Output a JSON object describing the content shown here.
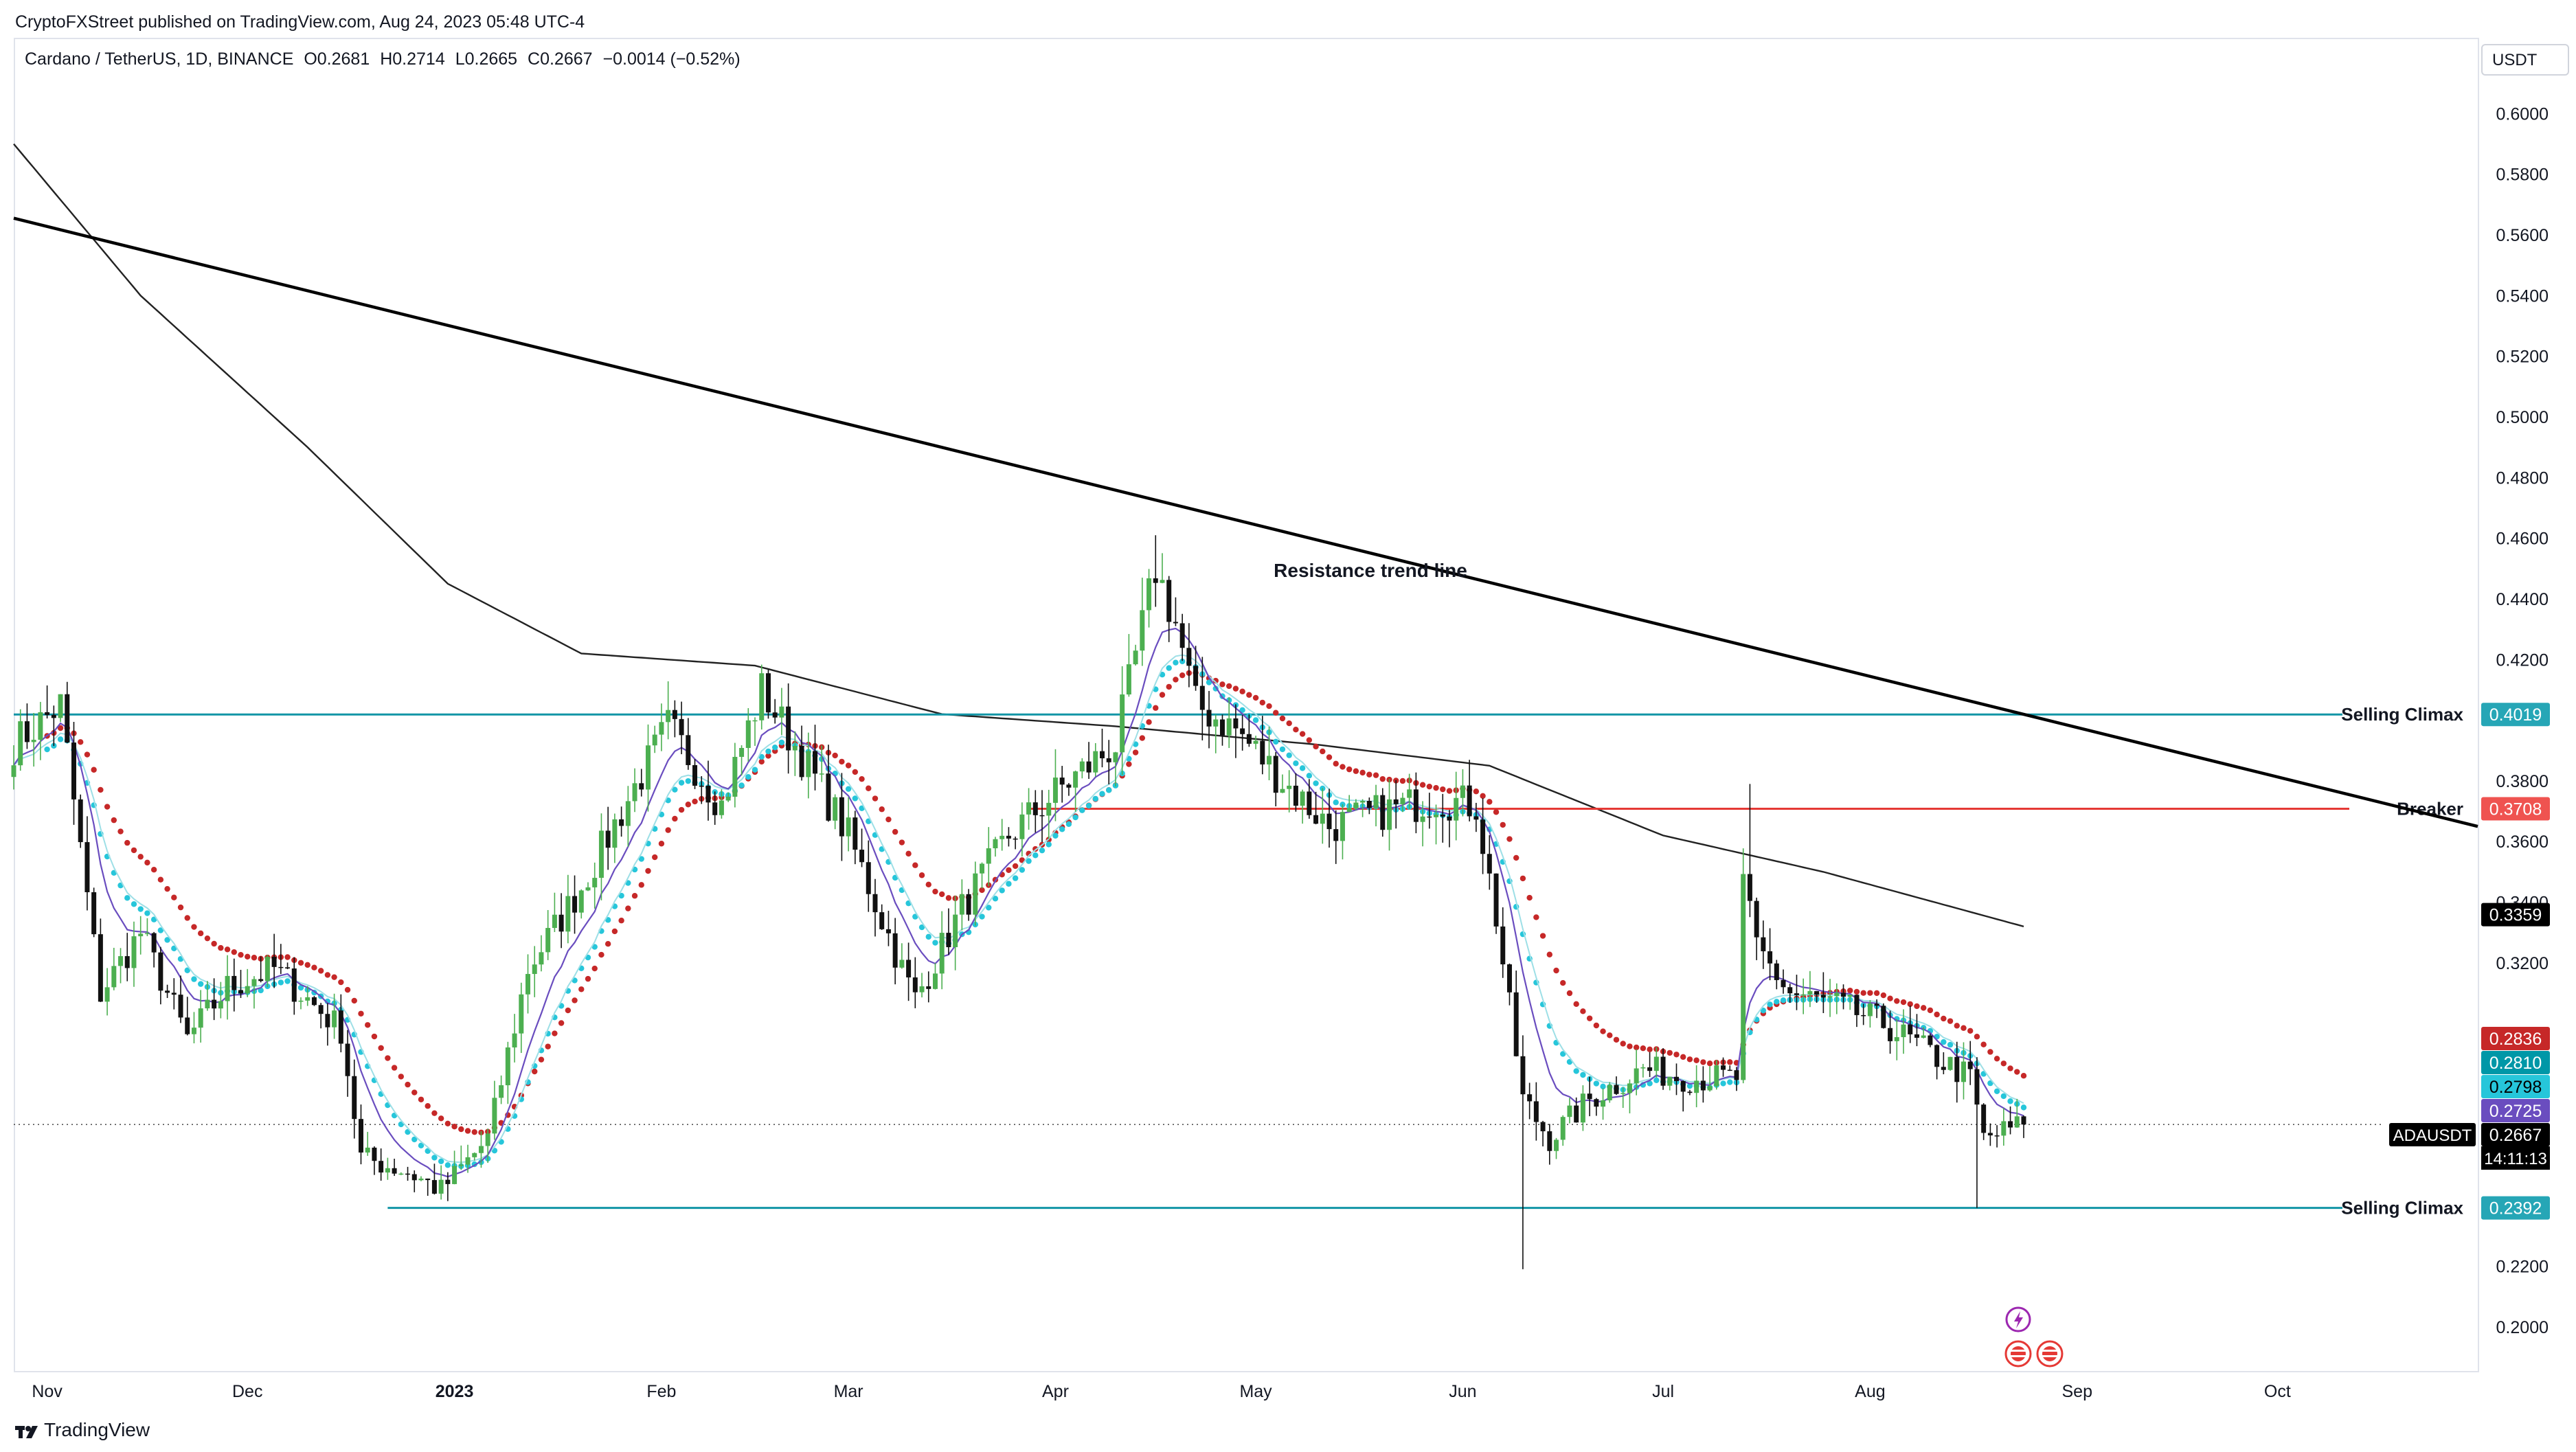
{
  "header": {
    "publisher_line": "CryptoFXStreet published on TradingView.com, Aug 24, 2023 05:48 UTC-4"
  },
  "symbol": {
    "name": "Cardano / TetherUS, 1D, BINANCE",
    "open": "O0.2681",
    "high": "H0.2714",
    "low": "L0.2665",
    "close": "C0.2667",
    "change": "−0.0014 (−0.52%)"
  },
  "axis": {
    "currency": "USDT",
    "ticks": [
      "0.6000",
      "0.5800",
      "0.5600",
      "0.5400",
      "0.5200",
      "0.5000",
      "0.4800",
      "0.4600",
      "0.4400",
      "0.4200",
      "0.3800",
      "0.3600",
      "0.3400",
      "0.3200",
      "0.2200",
      "0.2000"
    ],
    "time_labels": [
      "Nov",
      "Dec",
      "2023",
      "Feb",
      "Mar",
      "Apr",
      "May",
      "Jun",
      "Jul",
      "Aug",
      "Sep",
      "Oct"
    ]
  },
  "footer": {
    "brand": "TradingView"
  },
  "colors": {
    "bull": "#4caf50",
    "bear": "#111111",
    "teal_line": "#1295a6",
    "red_line": "#e53935",
    "dots_red": "#c62828",
    "dots_cyan": "#26c6da",
    "ma_purple": "#6a4dbf"
  },
  "chart_data": {
    "type": "candlestick",
    "instrument": "ADAUSDT",
    "timeframe": "1D",
    "y_range": [
      0.185,
      0.625
    ],
    "x_range_dates": [
      "2022-10-27",
      "2023-10-31"
    ],
    "levels": [
      {
        "label": "Selling Climax",
        "value": 0.4019,
        "color": "#1295a6",
        "from": "2022-10-27"
      },
      {
        "label": "Breaker",
        "value": 0.3708,
        "color": "#e53935",
        "from": "2023-03-28"
      },
      {
        "label": "Selling Climax",
        "value": 0.2392,
        "color": "#1295a6",
        "from": "2022-12-22"
      }
    ],
    "trendline": {
      "label": "Resistance trend line",
      "from": [
        "2022-10-27",
        0.5655
      ],
      "to": [
        "2023-10-31",
        0.365
      ]
    },
    "price_tags": [
      {
        "value": "0.3359",
        "bg": "#000000",
        "fg": "#ffffff"
      },
      {
        "value": "0.2836",
        "bg": "#c62828",
        "fg": "#ffffff"
      },
      {
        "value": "0.2810",
        "bg": "#0097a7",
        "fg": "#ffffff"
      },
      {
        "value": "0.2798",
        "bg": "#26c6da",
        "fg": "#000000"
      },
      {
        "value": "0.2725",
        "bg": "#6a4dbf",
        "fg": "#ffffff"
      },
      {
        "value": "0.2667",
        "bg": "#000000",
        "fg": "#ffffff",
        "symbol_label": "ADAUSDT",
        "countdown": "14:11:13"
      }
    ],
    "anchors": [
      [
        "2022-10-27",
        0.392
      ],
      [
        "2022-11-03",
        0.405
      ],
      [
        "2022-11-09",
        0.31
      ],
      [
        "2022-11-15",
        0.33
      ],
      [
        "2022-11-22",
        0.295
      ],
      [
        "2022-11-28",
        0.312
      ],
      [
        "2022-12-05",
        0.318
      ],
      [
        "2022-12-15",
        0.298
      ],
      [
        "2022-12-18",
        0.256
      ],
      [
        "2022-12-25",
        0.251
      ],
      [
        "2022-12-30",
        0.245
      ],
      [
        "2023-01-06",
        0.262
      ],
      [
        "2023-01-12",
        0.318
      ],
      [
        "2023-01-20",
        0.345
      ],
      [
        "2023-01-28",
        0.378
      ],
      [
        "2023-02-02",
        0.398
      ],
      [
        "2023-02-10",
        0.372
      ],
      [
        "2023-02-16",
        0.41
      ],
      [
        "2023-02-22",
        0.388
      ],
      [
        "2023-03-01",
        0.362
      ],
      [
        "2023-03-09",
        0.318
      ],
      [
        "2023-03-11",
        0.308
      ],
      [
        "2023-03-18",
        0.338
      ],
      [
        "2023-03-25",
        0.362
      ],
      [
        "2023-04-02",
        0.378
      ],
      [
        "2023-04-10",
        0.392
      ],
      [
        "2023-04-16",
        0.45
      ],
      [
        "2023-04-19",
        0.432
      ],
      [
        "2023-04-22",
        0.405
      ],
      [
        "2023-04-28",
        0.397
      ],
      [
        "2023-05-05",
        0.38
      ],
      [
        "2023-05-12",
        0.365
      ],
      [
        "2023-05-20",
        0.37
      ],
      [
        "2023-05-28",
        0.374
      ],
      [
        "2023-06-03",
        0.372
      ],
      [
        "2023-06-06",
        0.335
      ],
      [
        "2023-06-10",
        0.275
      ],
      [
        "2023-06-14",
        0.262
      ],
      [
        "2023-06-20",
        0.275
      ],
      [
        "2023-06-28",
        0.285
      ],
      [
        "2023-07-05",
        0.282
      ],
      [
        "2023-07-12",
        0.282
      ],
      [
        "2023-07-13",
        0.345
      ],
      [
        "2023-07-15",
        0.325
      ],
      [
        "2023-07-20",
        0.31
      ],
      [
        "2023-07-27",
        0.306
      ],
      [
        "2023-08-03",
        0.3
      ],
      [
        "2023-08-10",
        0.29
      ],
      [
        "2023-08-16",
        0.282
      ],
      [
        "2023-08-18",
        0.262
      ],
      [
        "2023-08-24",
        0.2667
      ]
    ],
    "wicks": [
      {
        "date": "2023-06-10",
        "low": 0.219
      },
      {
        "date": "2023-07-14",
        "high": 0.379
      },
      {
        "date": "2023-08-17",
        "low": 0.2392
      },
      {
        "date": "2023-04-16",
        "high": 0.461
      }
    ],
    "sma200_anchors": [
      [
        "2022-10-27",
        0.59
      ],
      [
        "2022-11-15",
        0.54
      ],
      [
        "2022-12-10",
        0.49
      ],
      [
        "2022-12-31",
        0.445
      ],
      [
        "2023-01-20",
        0.422
      ],
      [
        "2023-02-15",
        0.418
      ],
      [
        "2023-03-15",
        0.402
      ],
      [
        "2023-04-10",
        0.398
      ],
      [
        "2023-05-10",
        0.392
      ],
      [
        "2023-06-05",
        0.385
      ],
      [
        "2023-07-01",
        0.362
      ],
      [
        "2023-07-25",
        0.35
      ],
      [
        "2023-08-24",
        0.332
      ]
    ]
  }
}
